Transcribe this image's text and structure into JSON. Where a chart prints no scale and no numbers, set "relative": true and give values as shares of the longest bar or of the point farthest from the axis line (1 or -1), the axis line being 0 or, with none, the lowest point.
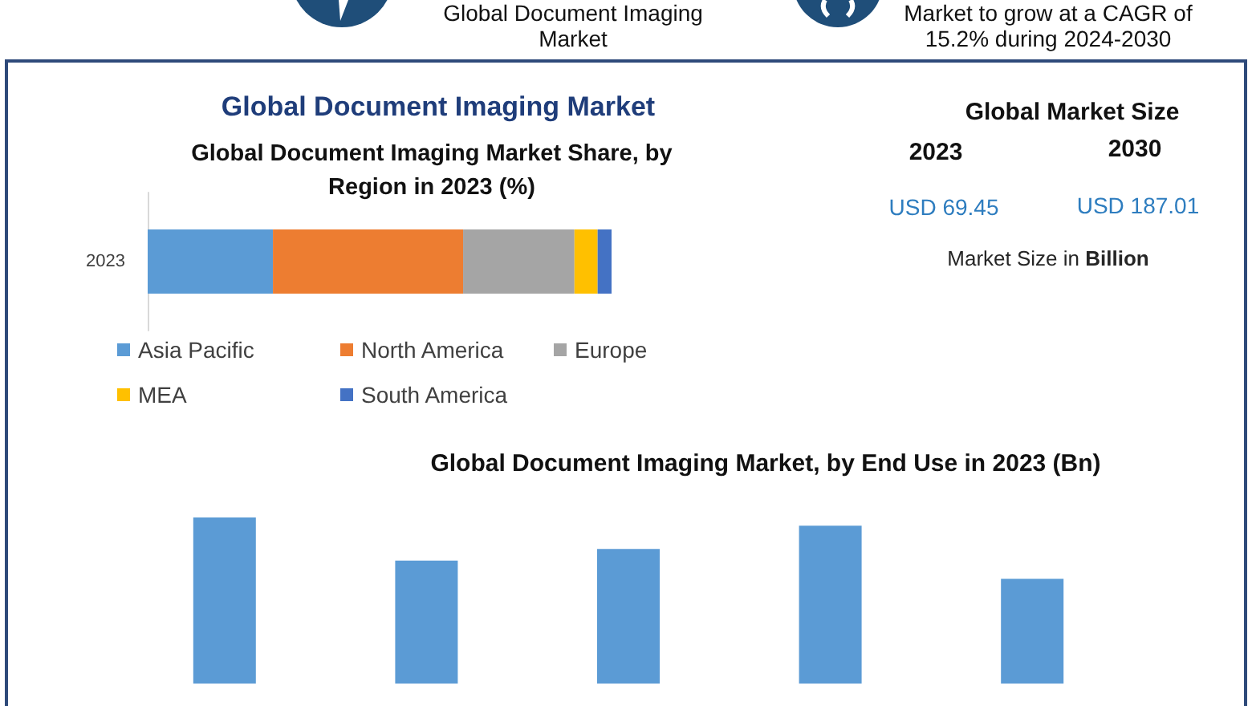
{
  "chart_data": [
    {
      "type": "other",
      "annotations": [
        "Global Document Imaging Market",
        "Market to grow at a CAGR of 15.2% during 2024-2030"
      ]
    },
    {
      "type": "bar",
      "title": "Global Document Imaging Market",
      "subtitle": "Global Document Imaging Market Share, by Region in 2023 (%)",
      "categories": [
        "2023"
      ],
      "orientation": "horizontal",
      "stacked": true,
      "relative": true,
      "legend": "bottom",
      "series": [
        {
          "name": "Asia Pacific",
          "color": "#5b9bd5",
          "values": [
            0.27
          ]
        },
        {
          "name": "North America",
          "color": "#ed7d31",
          "values": [
            0.41
          ]
        },
        {
          "name": "Europe",
          "color": "#a5a5a5",
          "values": [
            0.24
          ]
        },
        {
          "name": "MEA",
          "color": "#ffc000",
          "values": [
            0.05
          ]
        },
        {
          "name": "South America",
          "color": "#4472c4",
          "values": [
            0.03
          ]
        }
      ]
    },
    {
      "type": "other",
      "title": "Global Market Size",
      "annotations": [
        "2023",
        "2030",
        "USD 69.45",
        "USD 187.01",
        "Market Size in Billion"
      ]
    },
    {
      "type": "bar",
      "title": "Global Document Imaging Market, by End Use in 2023 (Bn)",
      "categories": [
        null,
        null,
        null,
        null,
        null
      ],
      "values": [
        1,
        0.74,
        0.81,
        0.95,
        0.63
      ],
      "color": "#5b9bd5",
      "relative": true
    }
  ]
}
